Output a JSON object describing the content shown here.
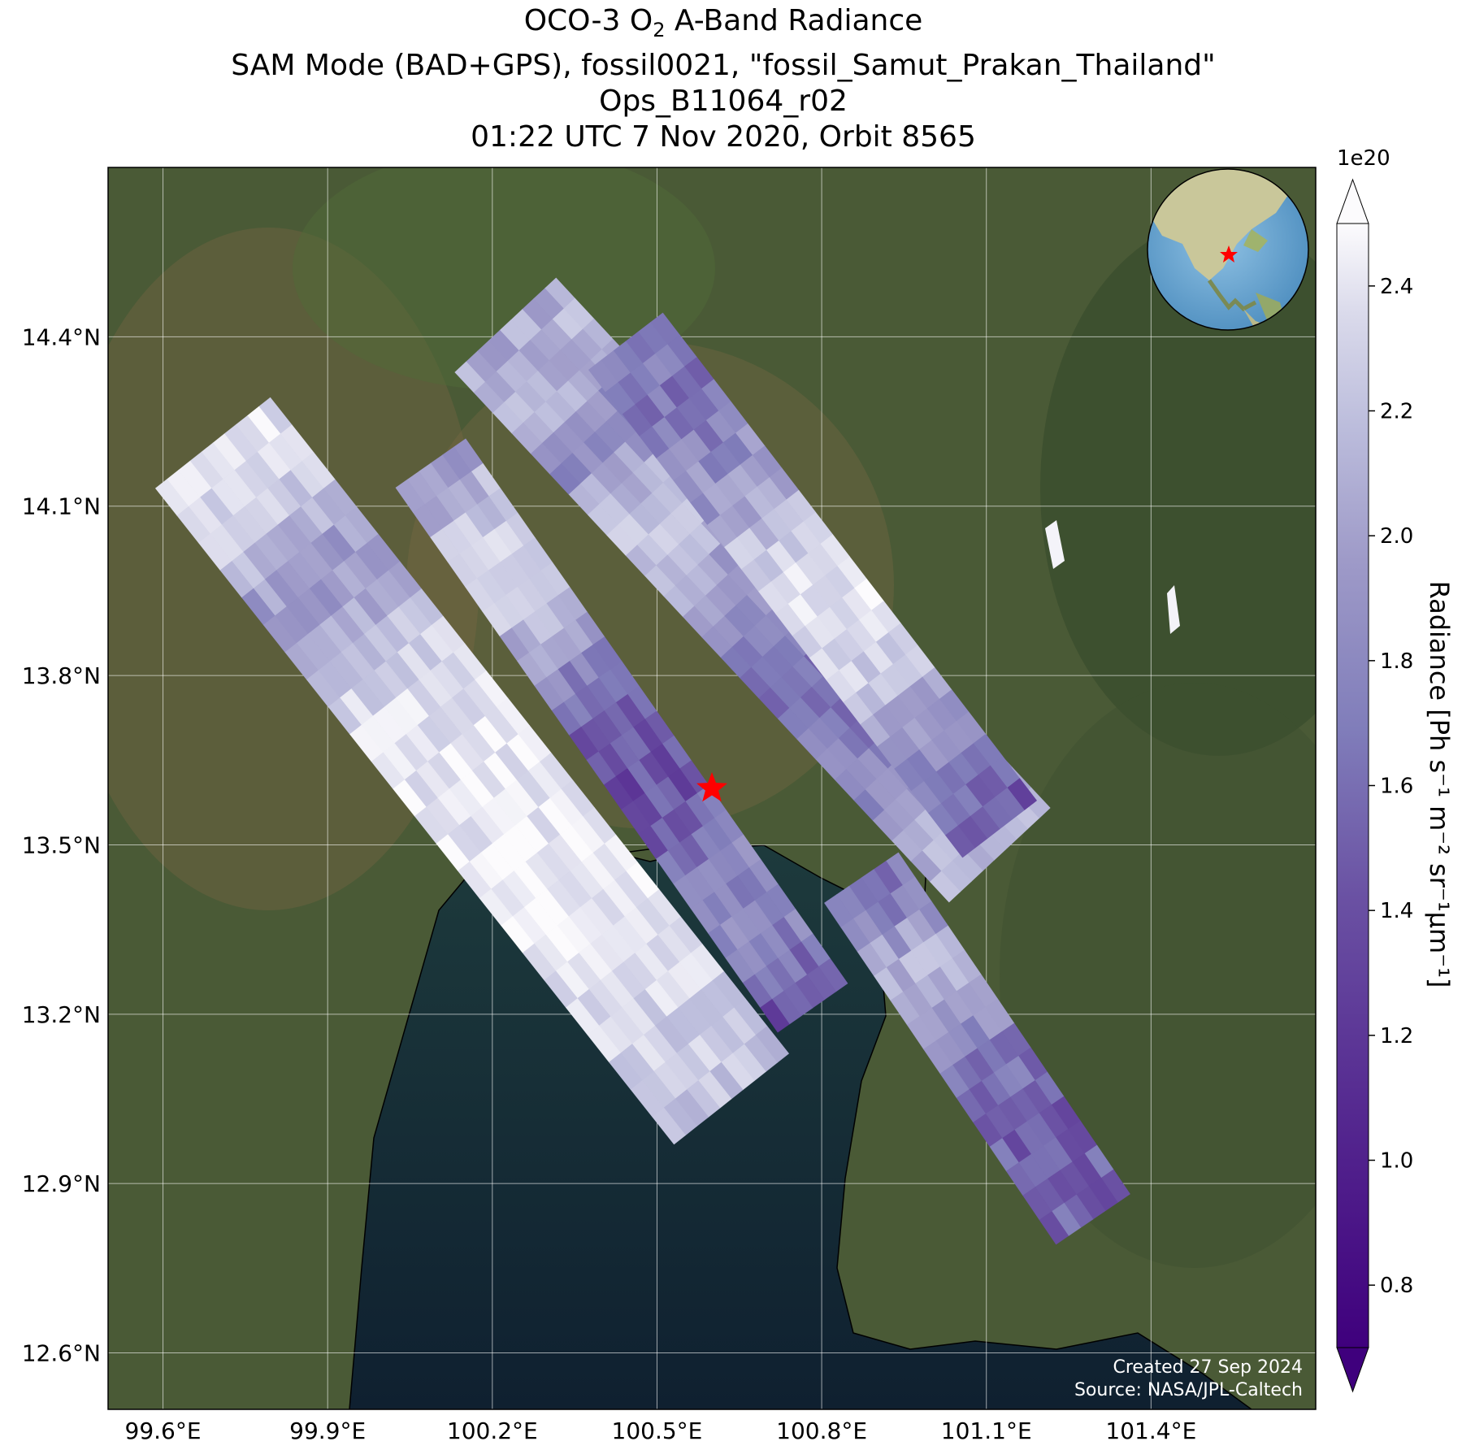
{
  "title": {
    "line1_prefix": "OCO-3 O",
    "line1_sub": "2",
    "line1_suffix": " A-Band Radiance",
    "line2": "SAM Mode (BAD+GPS), fossil0021, \"fossil_Samut_Prakan_Thailand\"",
    "line3": "Ops_B11064_r02",
    "line4": "01:22 UTC 7 Nov 2020, Orbit 8565"
  },
  "map": {
    "lon_range": [
      99.5,
      101.7
    ],
    "lat_range": [
      12.5,
      14.7
    ],
    "lon_ticks": [
      {
        "value": 99.6,
        "label": "99.6°E"
      },
      {
        "value": 99.9,
        "label": "99.9°E"
      },
      {
        "value": 100.2,
        "label": "100.2°E"
      },
      {
        "value": 100.5,
        "label": "100.5°E"
      },
      {
        "value": 100.8,
        "label": "100.8°E"
      },
      {
        "value": 101.1,
        "label": "101.1°E"
      },
      {
        "value": 101.4,
        "label": "101.4°E"
      }
    ],
    "lat_ticks": [
      {
        "value": 14.4,
        "label": "14.4°N"
      },
      {
        "value": 14.1,
        "label": "14.1°N"
      },
      {
        "value": 13.8,
        "label": "13.8°N"
      },
      {
        "value": 13.5,
        "label": "13.5°N"
      },
      {
        "value": 13.2,
        "label": "13.2°N"
      },
      {
        "value": 12.9,
        "label": "12.9°N"
      },
      {
        "value": 12.6,
        "label": "12.6°N"
      }
    ],
    "grid": true,
    "target_marker": {
      "lon": 100.6,
      "lat": 13.6,
      "color": "#ff0000",
      "symbol": "star"
    },
    "basemap": "satellite imagery",
    "inset": "globe (Asia)"
  },
  "colorbar": {
    "label": "Radiance [Ph s⁻¹ m⁻² sr⁻¹μm⁻¹]",
    "multiplier": "1e20",
    "min": 0.7,
    "max": 2.5,
    "colormap": "Purples_r",
    "extend": "both",
    "ticks": [
      {
        "value": 0.8,
        "label": "0.8"
      },
      {
        "value": 1.0,
        "label": "1.0"
      },
      {
        "value": 1.2,
        "label": "1.2"
      },
      {
        "value": 1.4,
        "label": "1.4"
      },
      {
        "value": 1.6,
        "label": "1.6"
      },
      {
        "value": 1.8,
        "label": "1.8"
      },
      {
        "value": 2.0,
        "label": "2.0"
      },
      {
        "value": 2.2,
        "label": "2.2"
      },
      {
        "value": 2.4,
        "label": "2.4"
      }
    ],
    "colors": {
      "low": "#3f007d",
      "mid": "#9e9ac8",
      "high": "#fcfbfd"
    }
  },
  "credits": {
    "created": "Created 27 Sep 2024",
    "source": "Source: NASA/JPL-Caltech"
  }
}
